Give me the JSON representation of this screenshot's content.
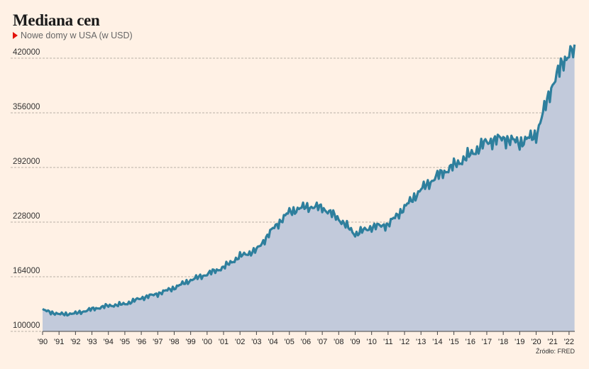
{
  "title": "Mediana cen",
  "source": "Źródło: FRED",
  "chart_data": {
    "type": "area",
    "title": "Mediana cen",
    "series": [
      {
        "name": "Nowe domy w USA (w USD)",
        "color": "#2e7f9d",
        "fill": "#c2cadb",
        "points": [
          [
            "1990",
            125000
          ],
          [
            "1991",
            120000
          ],
          [
            "1992",
            121000
          ],
          [
            "1993",
            126000
          ],
          [
            "1994",
            130000
          ],
          [
            "1995",
            132000
          ],
          [
            "1996",
            139000
          ],
          [
            "1997",
            144000
          ],
          [
            "1998",
            151000
          ],
          [
            "1999",
            160000
          ],
          [
            "2000",
            167000
          ],
          [
            "2001",
            175000
          ],
          [
            "2002",
            188000
          ],
          [
            "2003",
            195000
          ],
          [
            "2004",
            220000
          ],
          [
            "2005",
            240000
          ],
          [
            "2006",
            246000
          ],
          [
            "2007",
            245000
          ],
          [
            "2008",
            232000
          ],
          [
            "2009",
            214000
          ],
          [
            "2010",
            222000
          ],
          [
            "2011",
            225000
          ],
          [
            "2012",
            245000
          ],
          [
            "2013",
            266000
          ],
          [
            "2014",
            282000
          ],
          [
            "2015",
            294000
          ],
          [
            "2016",
            307000
          ],
          [
            "2017",
            322000
          ],
          [
            "2018",
            326000
          ],
          [
            "2019",
            321000
          ],
          [
            "2020",
            330000
          ],
          [
            "2021",
            390000
          ],
          [
            "2022",
            428000
          ]
        ]
      }
    ],
    "yticks": [
      "100000",
      "164000",
      "228000",
      "292000",
      "356000",
      "420000"
    ],
    "xticks": [
      "'90",
      "'91",
      "'92",
      "'93",
      "'94",
      "'95",
      "'96",
      "'97",
      "'98",
      "'99",
      "'00",
      "'01",
      "'02",
      "'03",
      "'04",
      "'05",
      "'06",
      "'07",
      "'08",
      "'09",
      "'10",
      "'11",
      "'12",
      "'13",
      "'14",
      "'15",
      "'16",
      "'17",
      "'18",
      "'19",
      "'20",
      "'21",
      "'22"
    ],
    "ylim": [
      100000,
      420000
    ],
    "grid": true,
    "legend": "top-left"
  }
}
